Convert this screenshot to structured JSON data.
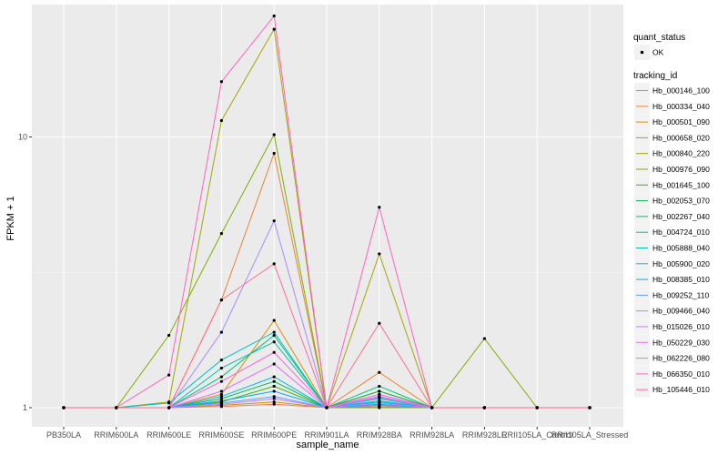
{
  "chart_data": {
    "type": "line",
    "title": "",
    "xlabel": "sample_name",
    "ylabel": "FPKM + 1",
    "yscale": "log10",
    "ylim": [
      0.95,
      30
    ],
    "yticks": [
      {
        "value": 1,
        "label": "1"
      },
      {
        "value": 10,
        "label": "10"
      }
    ],
    "categories": [
      "PB350LA",
      "RRIM600LA",
      "RRIM600LE",
      "RRIM600SE",
      "RRIM600PE",
      "RRIM901LA",
      "RRIM928BA",
      "RRIM928LA",
      "RRIM928LE",
      "RRII105LA_Control",
      "RRII105LA_Stressed"
    ],
    "quant_legend": {
      "title": "quant_status",
      "entries": [
        "OK"
      ]
    },
    "legend_title": "tracking_id",
    "series": [
      {
        "name": "Hb_000146_100",
        "color": "#F8766D",
        "values": [
          1,
          1,
          1,
          1.01,
          1.03,
          1,
          1.01,
          1,
          1,
          1,
          1
        ]
      },
      {
        "name": "Hb_000334_040",
        "color": "#EA8331",
        "values": [
          1,
          1,
          1,
          2.5,
          8.7,
          1,
          1.35,
          1,
          1,
          1,
          1
        ]
      },
      {
        "name": "Hb_000501_090",
        "color": "#D89000",
        "values": [
          1,
          1,
          1,
          1.12,
          2.1,
          1,
          1.15,
          1,
          1,
          1,
          1
        ]
      },
      {
        "name": "Hb_000658_020",
        "color": "#C09B00",
        "values": [
          1,
          1,
          1,
          1.02,
          1.05,
          1,
          1.02,
          1,
          1,
          1,
          1
        ]
      },
      {
        "name": "Hb_000840_220",
        "color": "#A3A500",
        "values": [
          1,
          1,
          1.05,
          11.5,
          25,
          1,
          3.7,
          1,
          1,
          1,
          1
        ]
      },
      {
        "name": "Hb_000976_090",
        "color": "#7CAE00",
        "values": [
          1,
          1,
          1.85,
          4.4,
          10.2,
          1,
          1,
          1,
          1.8,
          1,
          1
        ]
      },
      {
        "name": "Hb_001645_100",
        "color": "#39B600",
        "values": [
          1,
          1,
          1,
          1.05,
          1.2,
          1,
          1.1,
          1,
          1,
          1,
          1
        ]
      },
      {
        "name": "Hb_002053_070",
        "color": "#00BB4E",
        "values": [
          1,
          1,
          1,
          1.08,
          1.25,
          1,
          1.15,
          1,
          1,
          1,
          1
        ]
      },
      {
        "name": "Hb_002267_040",
        "color": "#00BF7D",
        "values": [
          1,
          1,
          1,
          1.3,
          1.85,
          1,
          1.2,
          1,
          1,
          1,
          1
        ]
      },
      {
        "name": "Hb_004724_010",
        "color": "#00C1A3",
        "values": [
          1,
          1,
          1,
          1.4,
          1.75,
          1,
          1.05,
          1,
          1,
          1,
          1
        ]
      },
      {
        "name": "Hb_005888_040",
        "color": "#00BFC4",
        "values": [
          1,
          1,
          1.04,
          1.5,
          1.9,
          1,
          1.08,
          1,
          1,
          1,
          1
        ]
      },
      {
        "name": "Hb_005900_020",
        "color": "#00B8E7",
        "values": [
          1,
          1,
          1,
          1.1,
          1.3,
          1,
          1.06,
          1,
          1,
          1,
          1
        ]
      },
      {
        "name": "Hb_008385_010",
        "color": "#00A9FF",
        "values": [
          1,
          1,
          1,
          1.06,
          1.15,
          1,
          1.03,
          1,
          1,
          1,
          1
        ]
      },
      {
        "name": "Hb_009252_110",
        "color": "#619CFF",
        "values": [
          1,
          1,
          1,
          1.04,
          1.1,
          1,
          1.02,
          1,
          1,
          1,
          1
        ]
      },
      {
        "name": "Hb_009466_040",
        "color": "#A58AFF",
        "values": [
          1,
          1,
          1,
          1.9,
          4.9,
          1,
          1.1,
          1,
          1,
          1,
          1
        ]
      },
      {
        "name": "Hb_015026_010",
        "color": "#C77CFF",
        "values": [
          1,
          1,
          1,
          1.03,
          1.08,
          1,
          1.04,
          1,
          1,
          1,
          1
        ]
      },
      {
        "name": "Hb_050229_030",
        "color": "#E76BF3",
        "values": [
          1,
          1,
          1,
          1.15,
          1.45,
          1,
          1.09,
          1,
          1,
          1,
          1
        ]
      },
      {
        "name": "Hb_062226_080",
        "color": "#FA62DB",
        "values": [
          1,
          1,
          1,
          1.25,
          1.6,
          1,
          1.12,
          1,
          1,
          1,
          1
        ]
      },
      {
        "name": "Hb_066350_010",
        "color": "#FF62BC",
        "values": [
          1,
          1,
          1.32,
          16,
          28,
          1,
          5.5,
          1,
          1,
          1,
          1
        ]
      },
      {
        "name": "Hb_105446_010",
        "color": "#FF6C91",
        "values": [
          1,
          1,
          1,
          2.5,
          3.4,
          1,
          2.05,
          1,
          1,
          1,
          1
        ]
      }
    ]
  }
}
